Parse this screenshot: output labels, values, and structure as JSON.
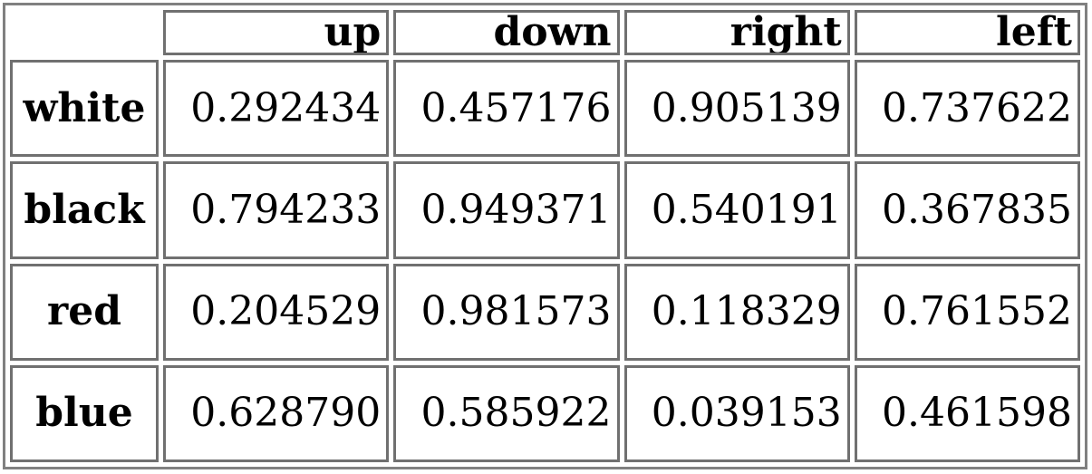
{
  "table": {
    "columns": [
      "up",
      "down",
      "right",
      "left"
    ],
    "rows": [
      {
        "label": "white",
        "values": [
          "0.292434",
          "0.457176",
          "0.905139",
          "0.737622"
        ]
      },
      {
        "label": "black",
        "values": [
          "0.794233",
          "0.949371",
          "0.540191",
          "0.367835"
        ]
      },
      {
        "label": "red",
        "values": [
          "0.204529",
          "0.981573",
          "0.118329",
          "0.761552"
        ]
      },
      {
        "label": "blue",
        "values": [
          "0.628790",
          "0.585922",
          "0.039153",
          "0.461598"
        ]
      }
    ]
  }
}
